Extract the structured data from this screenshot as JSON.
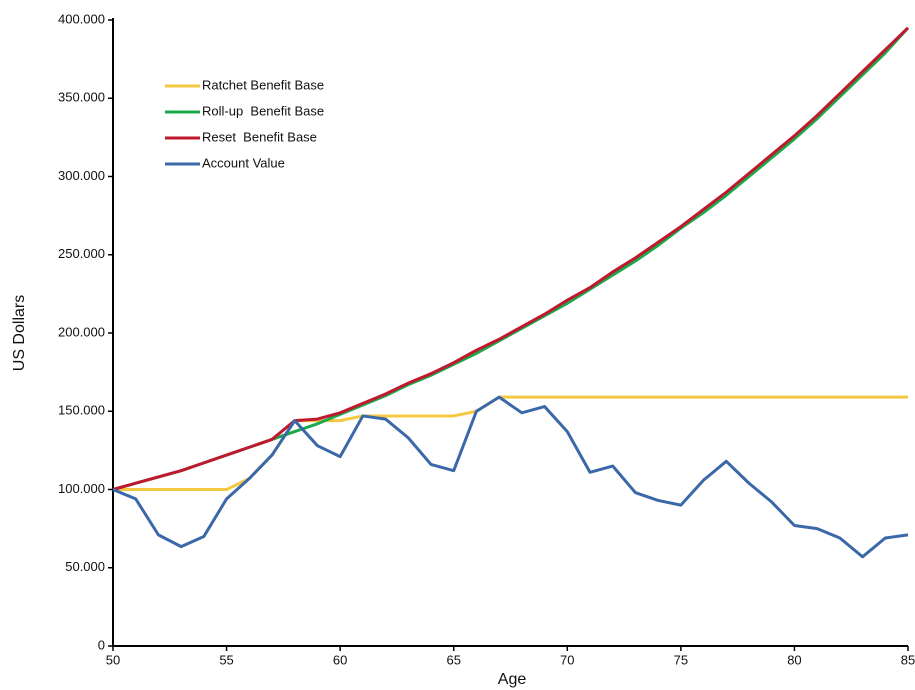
{
  "chart_data": {
    "type": "line",
    "xlabel": "Age",
    "ylabel": "US Dollars",
    "x": [
      50,
      51,
      52,
      53,
      54,
      55,
      56,
      57,
      58,
      59,
      60,
      61,
      62,
      63,
      64,
      65,
      66,
      67,
      68,
      69,
      70,
      71,
      72,
      73,
      74,
      75,
      76,
      77,
      78,
      79,
      80,
      81,
      82,
      83,
      84,
      85
    ],
    "xlim": [
      50,
      85
    ],
    "xticks": [
      50,
      55,
      60,
      65,
      70,
      75,
      80,
      85
    ],
    "ylim": [
      0,
      400000
    ],
    "yticks": [
      0,
      {
        "value": 50000,
        "label": "50.000"
      },
      {
        "value": 100000,
        "label": "100.000"
      },
      {
        "value": 150000,
        "label": "150.000"
      },
      {
        "value": 200000,
        "label": "200.000"
      },
      {
        "value": 250000,
        "label": "250.000"
      },
      {
        "value": 300000,
        "label": "300.000"
      },
      {
        "value": 350000,
        "label": "350.000"
      },
      {
        "value": 400000,
        "label": "400.000"
      }
    ],
    "legend": "upper left",
    "series": [
      {
        "name": "Ratchet Benefit Base",
        "color": "#f5c842",
        "values": [
          100000,
          100000,
          100000,
          100000,
          100000,
          100000,
          107000,
          122000,
          144000,
          144000,
          144000,
          147000,
          147000,
          147000,
          147000,
          147000,
          150000,
          159000,
          159000,
          159000,
          159000,
          159000,
          159000,
          159000,
          159000,
          159000,
          159000,
          159000,
          159000,
          159000,
          159000,
          159000,
          159000,
          159000,
          159000,
          159000
        ]
      },
      {
        "name": "Roll-up  Benefit Base",
        "color": "#1aaa4a",
        "values": [
          100000,
          104000,
          108000,
          112000,
          117000,
          122000,
          127000,
          132000,
          137000,
          142000,
          148000,
          154000,
          160000,
          167000,
          173000,
          180000,
          187000,
          195000,
          203000,
          211000,
          219000,
          228000,
          237000,
          246000,
          256000,
          267000,
          277000,
          288000,
          300000,
          312000,
          324000,
          337000,
          351000,
          365000,
          379000,
          395000
        ]
      },
      {
        "name": "Reset  Benefit Base",
        "color": "#c0182e",
        "values": [
          100000,
          104000,
          108000,
          112000,
          117000,
          122000,
          127000,
          132000,
          144000,
          145000,
          149000,
          155000,
          161000,
          168000,
          174000,
          181000,
          189000,
          196000,
          204000,
          212000,
          221000,
          229000,
          239000,
          248000,
          258000,
          268000,
          279000,
          290000,
          302000,
          314000,
          326000,
          339000,
          353000,
          367000,
          381000,
          395000
        ]
      },
      {
        "name": "Account Value",
        "color": "#3a68a8",
        "values": [
          100000,
          94000,
          71000,
          63500,
          70000,
          94000,
          107000,
          122000,
          144000,
          128000,
          121000,
          147000,
          145000,
          133000,
          116000,
          112000,
          150000,
          159000,
          149000,
          153000,
          137000,
          111000,
          115000,
          98000,
          93000,
          90000,
          106000,
          118000,
          104000,
          92000,
          77000,
          75000,
          69000,
          57000,
          69000,
          71000
        ]
      }
    ]
  }
}
